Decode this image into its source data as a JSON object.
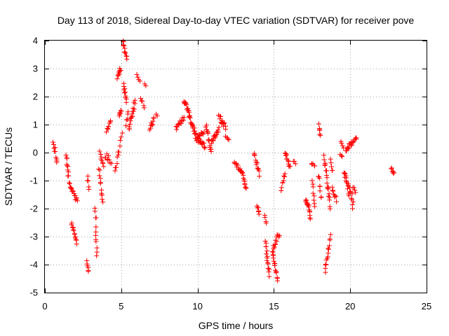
{
  "chart_data": {
    "type": "scatter",
    "title": "Day 113 of 2018, Sidereal Day-to-day VTEC variation (SDTVAR) for receiver pove",
    "xlabel": "GPS time / hours",
    "ylabel": "SDTVAR / TECUs",
    "xlim": [
      0,
      25
    ],
    "ylim": [
      -5,
      4
    ],
    "xticks": [
      0,
      5,
      10,
      15,
      20,
      25
    ],
    "xtick_labels": [
      "0",
      "5",
      "10",
      "15",
      "20",
      "25"
    ],
    "yticks": [
      -5,
      -4,
      -3,
      -2,
      -1,
      0,
      1,
      2,
      3,
      4
    ],
    "ytick_labels": [
      "-5",
      "-4",
      "-3",
      "-2",
      "-1",
      "0",
      "1",
      "2",
      "3",
      "4"
    ],
    "grid": true,
    "marker": "plus",
    "point_color": "#ff0000",
    "series": [
      {
        "name": "SDTVAR",
        "segments": [
          {
            "x": [
              0.55,
              0.8
            ],
            "y": [
              0.35,
              -0.35
            ],
            "n": 10,
            "noise": 0.08
          },
          {
            "x": [
              1.4,
              1.55
            ],
            "y": [
              -0.1,
              -0.9
            ],
            "n": 10,
            "noise": 0.08
          },
          {
            "x": [
              1.6,
              2.1
            ],
            "y": [
              -1.1,
              -1.75
            ],
            "n": 16,
            "noise": 0.08
          },
          {
            "x": [
              1.75,
              2.1
            ],
            "y": [
              -2.5,
              -3.2
            ],
            "n": 14,
            "noise": 0.08
          },
          {
            "x": [
              2.75,
              2.85
            ],
            "y": [
              -3.9,
              -4.25
            ],
            "n": 6,
            "noise": 0.05
          },
          {
            "x": [
              2.8,
              2.9
            ],
            "y": [
              -0.8,
              -1.35
            ],
            "n": 5,
            "noise": 0.08
          },
          {
            "x": [
              3.3,
              3.4
            ],
            "y": [
              -2.0,
              -3.6
            ],
            "n": 12,
            "noise": 0.12
          },
          {
            "x": [
              3.55,
              3.8
            ],
            "y": [
              -0.6,
              -1.8
            ],
            "n": 12,
            "noise": 0.1
          },
          {
            "x": [
              3.6,
              3.85
            ],
            "y": [
              0.0,
              -0.5
            ],
            "n": 8,
            "noise": 0.08
          },
          {
            "x": [
              3.95,
              4.35
            ],
            "y": [
              -0.1,
              -0.3
            ],
            "n": 10,
            "noise": 0.12
          },
          {
            "x": [
              4.05,
              4.3
            ],
            "y": [
              0.75,
              1.15
            ],
            "n": 8,
            "noise": 0.06
          },
          {
            "x": [
              4.6,
              4.85
            ],
            "y": [
              -0.65,
              0.1
            ],
            "n": 8,
            "noise": 0.1
          },
          {
            "x": [
              4.75,
              4.95
            ],
            "y": [
              2.7,
              3.0
            ],
            "n": 10,
            "noise": 0.07
          },
          {
            "x": [
              4.85,
              5.0
            ],
            "y": [
              1.3,
              1.5
            ],
            "n": 6,
            "noise": 0.06
          },
          {
            "x": [
              4.9,
              5.05
            ],
            "y": [
              0.2,
              0.7
            ],
            "n": 4,
            "noise": 0.08
          },
          {
            "x": [
              5.1,
              5.35
            ],
            "y": [
              3.95,
              3.4
            ],
            "n": 12,
            "noise": 0.07
          },
          {
            "x": [
              5.15,
              5.35
            ],
            "y": [
              2.4,
              1.85
            ],
            "n": 10,
            "noise": 0.07
          },
          {
            "x": [
              5.3,
              5.45
            ],
            "y": [
              1.0,
              1.45
            ],
            "n": 5,
            "noise": 0.08
          },
          {
            "x": [
              5.5,
              5.9
            ],
            "y": [
              0.8,
              1.85
            ],
            "n": 18,
            "noise": 0.12
          },
          {
            "x": [
              6.05,
              6.2
            ],
            "y": [
              2.75,
              2.55
            ],
            "n": 4,
            "noise": 0.05
          },
          {
            "x": [
              6.3,
              6.5
            ],
            "y": [
              1.95,
              1.65
            ],
            "n": 5,
            "noise": 0.05
          },
          {
            "x": [
              6.55,
              6.6
            ],
            "y": [
              2.45,
              2.4
            ],
            "n": 2,
            "noise": 0.03
          },
          {
            "x": [
              6.85,
              7.15
            ],
            "y": [
              0.85,
              1.2
            ],
            "n": 9,
            "noise": 0.08
          },
          {
            "x": [
              7.3,
              7.35
            ],
            "y": [
              1.35,
              1.3
            ],
            "n": 2,
            "noise": 0.03
          },
          {
            "x": [
              8.6,
              9.1
            ],
            "y": [
              0.85,
              1.3
            ],
            "n": 14,
            "noise": 0.12
          },
          {
            "x": [
              9.1,
              9.4
            ],
            "y": [
              1.9,
              1.45
            ],
            "n": 12,
            "noise": 0.08
          },
          {
            "x": [
              9.4,
              9.95
            ],
            "y": [
              1.4,
              0.5
            ],
            "n": 22,
            "noise": 0.1
          },
          {
            "x": [
              9.95,
              10.5
            ],
            "y": [
              0.5,
              0.2
            ],
            "n": 16,
            "noise": 0.08
          },
          {
            "x": [
              10.0,
              10.4
            ],
            "y": [
              0.6,
              0.7
            ],
            "n": 10,
            "noise": 0.06
          },
          {
            "x": [
              10.55,
              10.9
            ],
            "y": [
              1.0,
              0.05
            ],
            "n": 14,
            "noise": 0.1
          },
          {
            "x": [
              10.9,
              11.4
            ],
            "y": [
              0.3,
              0.85
            ],
            "n": 16,
            "noise": 0.1
          },
          {
            "x": [
              11.4,
              11.85
            ],
            "y": [
              1.3,
              0.9
            ],
            "n": 14,
            "noise": 0.1
          },
          {
            "x": [
              11.85,
              12.05
            ],
            "y": [
              0.6,
              0.5
            ],
            "n": 4,
            "noise": 0.05
          },
          {
            "x": [
              12.4,
              13.0
            ],
            "y": [
              -0.3,
              -0.8
            ],
            "n": 16,
            "noise": 0.07
          },
          {
            "x": [
              13.0,
              13.2
            ],
            "y": [
              -0.9,
              -1.3
            ],
            "n": 8,
            "noise": 0.06
          },
          {
            "x": [
              13.7,
              14.05
            ],
            "y": [
              0.0,
              -0.8
            ],
            "n": 12,
            "noise": 0.08
          },
          {
            "x": [
              13.9,
              14.05
            ],
            "y": [
              -1.9,
              -2.15
            ],
            "n": 6,
            "noise": 0.05
          },
          {
            "x": [
              14.4,
              14.5
            ],
            "y": [
              -2.2,
              -2.55
            ],
            "n": 4,
            "noise": 0.05
          },
          {
            "x": [
              14.45,
              14.7
            ],
            "y": [
              -3.2,
              -4.4
            ],
            "n": 16,
            "noise": 0.1
          },
          {
            "x": [
              14.9,
              15.25
            ],
            "y": [
              -3.5,
              -4.55
            ],
            "n": 16,
            "noise": 0.08
          },
          {
            "x": [
              14.95,
              15.35
            ],
            "y": [
              -3.4,
              -2.9
            ],
            "n": 12,
            "noise": 0.1
          },
          {
            "x": [
              15.5,
              15.7
            ],
            "y": [
              -1.3,
              -0.75
            ],
            "n": 8,
            "noise": 0.08
          },
          {
            "x": [
              15.75,
              16.05
            ],
            "y": [
              0.0,
              -0.5
            ],
            "n": 12,
            "noise": 0.08
          },
          {
            "x": [
              16.3,
              16.4
            ],
            "y": [
              -0.3,
              -0.4
            ],
            "n": 3,
            "noise": 0.04
          },
          {
            "x": [
              17.1,
              17.4
            ],
            "y": [
              -1.6,
              -2.3
            ],
            "n": 16,
            "noise": 0.15
          },
          {
            "x": [
              17.45,
              17.7
            ],
            "y": [
              -0.4,
              -0.5
            ],
            "n": 5,
            "noise": 0.06
          },
          {
            "x": [
              17.5,
              17.7
            ],
            "y": [
              -1.0,
              -1.9
            ],
            "n": 8,
            "noise": 0.08
          },
          {
            "x": [
              17.9,
              18.1
            ],
            "y": [
              -0.8,
              -1.6
            ],
            "n": 8,
            "noise": 0.12
          },
          {
            "x": [
              17.95,
              18.05
            ],
            "y": [
              1.0,
              0.6
            ],
            "n": 6,
            "noise": 0.06
          },
          {
            "x": [
              18.3,
              18.7
            ],
            "y": [
              -0.2,
              -1.9
            ],
            "n": 20,
            "noise": 0.15
          },
          {
            "x": [
              18.35,
              18.7
            ],
            "y": [
              -4.25,
              -3.0
            ],
            "n": 14,
            "noise": 0.08
          },
          {
            "x": [
              18.7,
              18.85
            ],
            "y": [
              -0.2,
              -0.7
            ],
            "n": 5,
            "noise": 0.08
          },
          {
            "x": [
              18.8,
              19.1
            ],
            "y": [
              -1.3,
              -1.7
            ],
            "n": 8,
            "noise": 0.08
          },
          {
            "x": [
              19.35,
              19.45
            ],
            "y": [
              -0.05,
              -0.15
            ],
            "n": 3,
            "noise": 0.04
          },
          {
            "x": [
              19.4,
              19.55
            ],
            "y": [
              0.35,
              0.2
            ],
            "n": 4,
            "noise": 0.05
          },
          {
            "x": [
              19.6,
              20.2
            ],
            "y": [
              -0.7,
              -1.85
            ],
            "n": 26,
            "noise": 0.2
          },
          {
            "x": [
              19.7,
              20.4
            ],
            "y": [
              0.1,
              0.5
            ],
            "n": 18,
            "noise": 0.08
          },
          {
            "x": [
              20.2,
              20.35
            ],
            "y": [
              -1.2,
              -1.45
            ],
            "n": 4,
            "noise": 0.05
          },
          {
            "x": [
              22.7,
              22.85
            ],
            "y": [
              -0.55,
              -0.75
            ],
            "n": 6,
            "noise": 0.06
          }
        ]
      }
    ]
  }
}
